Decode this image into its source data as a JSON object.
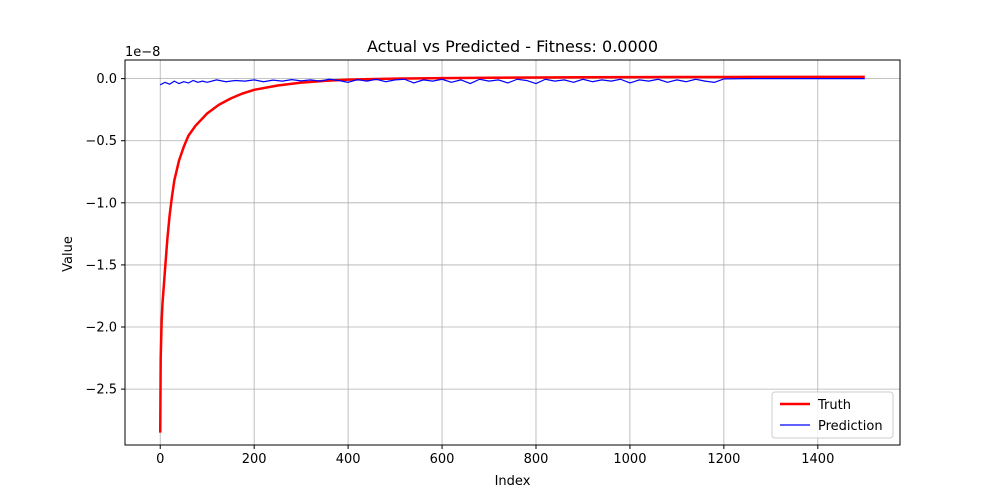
{
  "chart_data": {
    "type": "line",
    "title": "Actual vs Predicted - Fitness: 0.0000",
    "xlabel": "Index",
    "ylabel": "Value",
    "offset_text": "1e−8",
    "xlim": [
      -75,
      1575
    ],
    "ylim": [
      -2.95,
      0.15
    ],
    "x_ticks": [
      0,
      200,
      400,
      600,
      800,
      1000,
      1200,
      1400
    ],
    "x_tick_labels": [
      "0",
      "200",
      "400",
      "600",
      "800",
      "1000",
      "1200",
      "1400"
    ],
    "y_ticks": [
      0.0,
      -0.5,
      -1.0,
      -1.5,
      -2.0,
      -2.5
    ],
    "y_tick_labels": [
      "0.0",
      "−0.5",
      "−1.0",
      "−1.5",
      "−2.0",
      "−2.5"
    ],
    "grid": true,
    "legend_position": "lower right",
    "series": [
      {
        "name": "Truth",
        "color": "#ff0000",
        "x": [
          0,
          1,
          3,
          5,
          10,
          15,
          20,
          25,
          30,
          40,
          50,
          60,
          75,
          100,
          125,
          150,
          175,
          200,
          250,
          300,
          350,
          400,
          500,
          600,
          700,
          800,
          900,
          1000,
          1100,
          1200,
          1300,
          1400,
          1500
        ],
        "y": [
          -2.85,
          -2.25,
          -1.95,
          -1.8,
          -1.55,
          -1.3,
          -1.1,
          -0.95,
          -0.82,
          -0.66,
          -0.55,
          -0.46,
          -0.38,
          -0.28,
          -0.21,
          -0.16,
          -0.12,
          -0.09,
          -0.055,
          -0.032,
          -0.018,
          -0.008,
          0.0,
          0.004,
          0.007,
          0.009,
          0.011,
          0.012,
          0.013,
          0.013,
          0.014,
          0.014,
          0.014
        ]
      },
      {
        "name": "Prediction",
        "color": "#0000ff",
        "x": [
          0,
          10,
          20,
          30,
          40,
          50,
          60,
          70,
          80,
          90,
          100,
          120,
          140,
          160,
          180,
          200,
          220,
          240,
          260,
          280,
          300,
          320,
          340,
          360,
          380,
          400,
          420,
          440,
          460,
          480,
          500,
          520,
          540,
          560,
          580,
          600,
          620,
          640,
          660,
          680,
          700,
          720,
          740,
          760,
          780,
          800,
          820,
          840,
          860,
          880,
          900,
          920,
          940,
          960,
          980,
          1000,
          1020,
          1040,
          1060,
          1080,
          1100,
          1120,
          1140,
          1160,
          1180,
          1200,
          1250,
          1300,
          1350,
          1400,
          1450,
          1500
        ],
        "y": [
          -0.05,
          -0.03,
          -0.045,
          -0.02,
          -0.04,
          -0.025,
          -0.035,
          -0.015,
          -0.03,
          -0.02,
          -0.03,
          -0.01,
          -0.025,
          -0.015,
          -0.02,
          -0.01,
          -0.025,
          -0.012,
          -0.02,
          -0.008,
          -0.018,
          -0.01,
          -0.02,
          -0.005,
          -0.015,
          -0.03,
          -0.008,
          -0.02,
          -0.005,
          -0.025,
          -0.01,
          -0.005,
          -0.035,
          -0.01,
          -0.02,
          -0.005,
          -0.03,
          -0.01,
          -0.04,
          -0.005,
          -0.02,
          -0.01,
          -0.035,
          -0.005,
          -0.015,
          -0.04,
          -0.005,
          -0.02,
          -0.01,
          -0.03,
          -0.005,
          -0.025,
          -0.01,
          -0.02,
          -0.005,
          -0.035,
          -0.01,
          -0.02,
          -0.005,
          -0.03,
          -0.01,
          -0.025,
          -0.005,
          -0.02,
          -0.03,
          -0.002,
          0.0,
          0.0,
          0.0,
          0.0,
          0.0,
          0.0
        ]
      }
    ]
  }
}
